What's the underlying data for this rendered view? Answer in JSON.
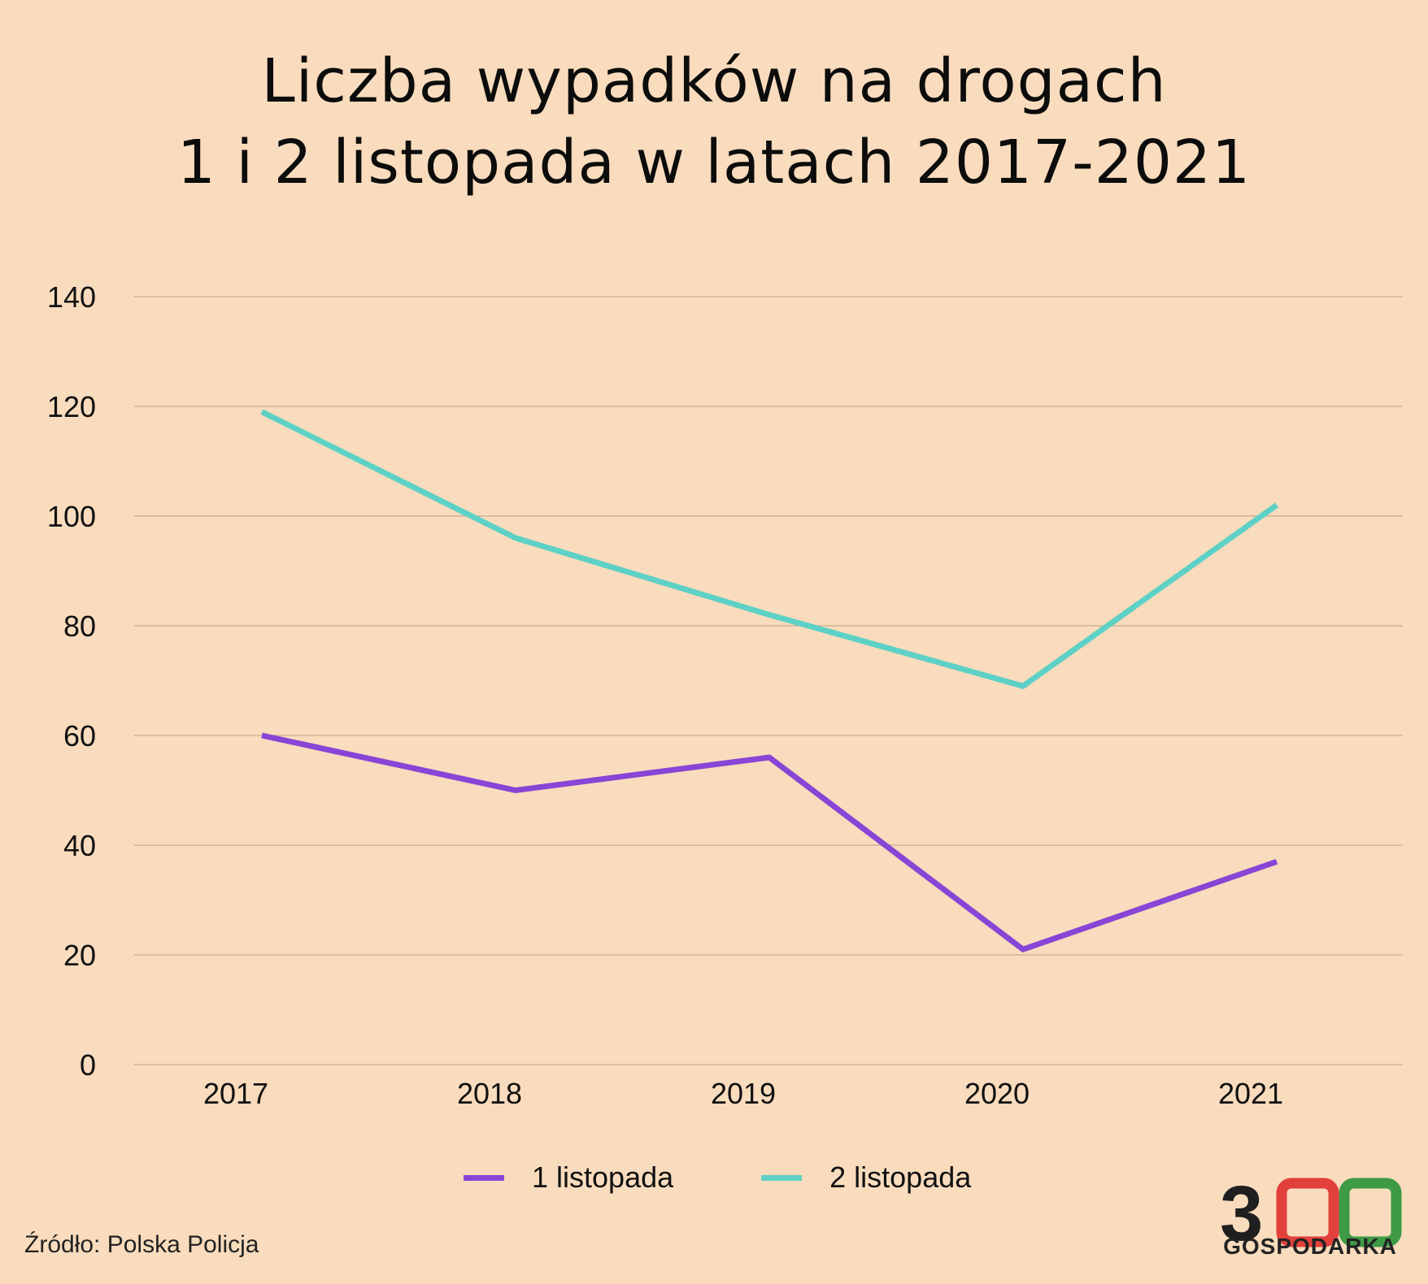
{
  "title": {
    "line1": "Liczba wypadków na drogach",
    "line2": "1 i 2 listopada w latach 2017-2021"
  },
  "source": "Źródło: Polska Policja",
  "logo": {
    "digits": "300",
    "text": "GOSPODARKA",
    "colors": [
      "#1f1f1f",
      "#e2403b",
      "#3f9a45"
    ]
  },
  "colors": {
    "background": "#f9dcbd",
    "grid": "#c9ab8f",
    "series1": "#8845d6",
    "series2": "#5ed1c6"
  },
  "chart_data": {
    "type": "line",
    "title": "Liczba wypadków na drogach 1 i 2 listopada w latach 2017-2021",
    "categories": [
      "2017",
      "2018",
      "2019",
      "2020",
      "2021"
    ],
    "series": [
      {
        "name": "1 listopada",
        "values": [
          60,
          50,
          56,
          21,
          37
        ]
      },
      {
        "name": "2 listopada",
        "values": [
          119,
          96,
          82,
          69,
          102
        ]
      }
    ],
    "ylim": [
      0,
      140
    ],
    "yticks": [
      0,
      20,
      40,
      60,
      80,
      100,
      120,
      140
    ],
    "grid": true,
    "legend": "bottom"
  }
}
